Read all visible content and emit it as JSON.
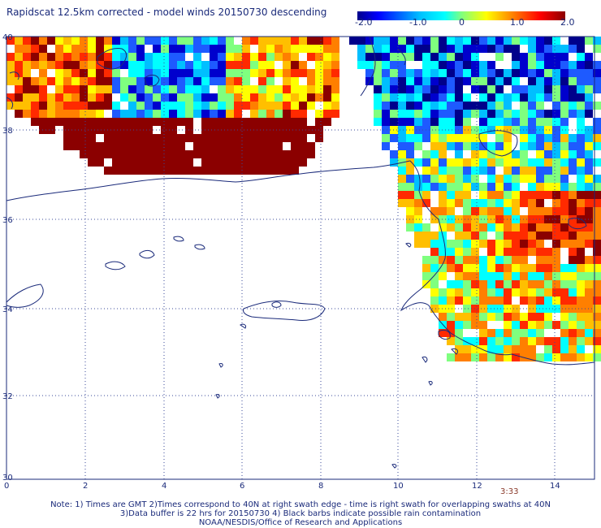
{
  "title": "Rapidscat 12.5km corrected - model winds 20150730 descending",
  "colorbar": {
    "ticks": [
      "-2.0",
      "-1.0",
      "0",
      "1.0",
      "2.0"
    ],
    "range": [
      -2.0,
      2.0
    ],
    "colors": [
      "#00008b",
      "#0000ff",
      "#00bfff",
      "#00ffff",
      "#7fff7f",
      "#ffff00",
      "#ff7f00",
      "#ff0000",
      "#8b0000"
    ]
  },
  "axes": {
    "lat_labels": [
      "40",
      "38",
      "36",
      "34",
      "32",
      "30"
    ],
    "lon_labels": [
      "0",
      "2",
      "4",
      "6",
      "8",
      "10",
      "12",
      "14"
    ]
  },
  "time_label": "3:33",
  "notes": {
    "line1": "Note: 1) Times are GMT 2)Times correspond to 40N at right swath edge - time is right swath for overlapping swaths at 40N",
    "line2": "3)Data buffer is 22 hrs for 20150730 4) Black barbs indicate possible rain contamination",
    "line3": "NOAA/NESDIS/Office of Research and Applications"
  }
}
